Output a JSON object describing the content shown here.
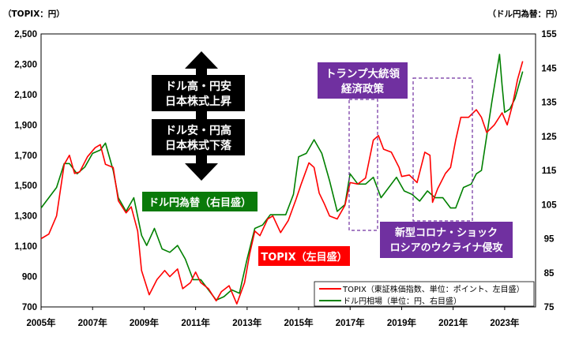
{
  "chart_data": {
    "type": "line",
    "left_axis_unit": "（TOPIX：円）",
    "right_axis_unit": "（ドル円為替：円）",
    "x_tick_labels": [
      "2005年",
      "2007年",
      "2009年",
      "2011年",
      "2013年",
      "2015年",
      "2017年",
      "2019年",
      "2021年",
      "2023年"
    ],
    "x_ticks": [
      2005,
      2007,
      2009,
      2011,
      2013,
      2015,
      2017,
      2019,
      2021,
      2023
    ],
    "xlim": [
      2005,
      2024.2
    ],
    "left_ylim": [
      700,
      2500
    ],
    "left_ticks": [
      700,
      900,
      1100,
      1300,
      1500,
      1700,
      1900,
      2100,
      2300,
      2500
    ],
    "left_tick_labels": [
      "700",
      "900",
      "1,100",
      "1,300",
      "1,500",
      "1,700",
      "1,900",
      "2,100",
      "2,300",
      "2,500"
    ],
    "right_ylim": [
      75,
      155
    ],
    "right_ticks": [
      75,
      85,
      95,
      105,
      115,
      125,
      135,
      145,
      155
    ],
    "right_tick_labels": [
      "75",
      "85",
      "95",
      "105",
      "115",
      "125",
      "135",
      "145",
      "155"
    ],
    "grid": false,
    "legend_position": "bottom-right",
    "colors": {
      "topix": "#ff0000",
      "usdjpy": "#008000",
      "callout_black": "#000000",
      "callout_green": "#0a7a0a",
      "callout_red": "#ff0000",
      "callout_purple": "#7030a0",
      "dash_purple": "#7030a0"
    },
    "series": [
      {
        "name": "TOPIX（東証株価指数、単位：ポイント、左目盛）",
        "axis": "left",
        "x": [
          2005.0,
          2005.3,
          2005.6,
          2005.9,
          2006.1,
          2006.3,
          2006.5,
          2006.8,
          2007.1,
          2007.3,
          2007.5,
          2007.8,
          2008.0,
          2008.3,
          2008.5,
          2008.75,
          2008.9,
          2009.2,
          2009.5,
          2009.8,
          2010.0,
          2010.3,
          2010.5,
          2010.8,
          2011.0,
          2011.2,
          2011.5,
          2011.8,
          2012.0,
          2012.3,
          2012.6,
          2012.9,
          2013.1,
          2013.3,
          2013.5,
          2013.8,
          2014.0,
          2014.3,
          2014.6,
          2014.9,
          2015.1,
          2015.4,
          2015.6,
          2015.8,
          2016.0,
          2016.2,
          2016.5,
          2016.8,
          2017.0,
          2017.3,
          2017.6,
          2017.9,
          2018.1,
          2018.3,
          2018.6,
          2018.9,
          2019.0,
          2019.3,
          2019.6,
          2019.9,
          2020.1,
          2020.2,
          2020.4,
          2020.7,
          2020.9,
          2021.1,
          2021.3,
          2021.6,
          2021.9,
          2022.1,
          2022.3,
          2022.6,
          2022.9,
          2023.1,
          2023.3,
          2023.5,
          2023.7
        ],
        "values": [
          1150,
          1180,
          1300,
          1640,
          1700,
          1580,
          1590,
          1690,
          1750,
          1770,
          1640,
          1620,
          1400,
          1320,
          1360,
          1200,
          940,
          780,
          880,
          940,
          900,
          950,
          820,
          860,
          930,
          860,
          820,
          740,
          800,
          840,
          720,
          860,
          1050,
          1200,
          1170,
          1280,
          1300,
          1190,
          1270,
          1410,
          1510,
          1650,
          1620,
          1450,
          1380,
          1300,
          1280,
          1370,
          1520,
          1510,
          1550,
          1800,
          1830,
          1740,
          1720,
          1620,
          1560,
          1570,
          1520,
          1720,
          1700,
          1390,
          1480,
          1580,
          1620,
          1800,
          1950,
          1950,
          2000,
          1950,
          1850,
          1900,
          1980,
          1900,
          2030,
          2200,
          2320
        ]
      },
      {
        "name": "ドル円相場（単位：円、右目盛）",
        "axis": "right",
        "x": [
          2005.0,
          2005.3,
          2005.6,
          2005.9,
          2006.1,
          2006.4,
          2006.7,
          2007.0,
          2007.3,
          2007.5,
          2007.8,
          2008.0,
          2008.3,
          2008.6,
          2008.9,
          2009.1,
          2009.4,
          2009.7,
          2010.0,
          2010.3,
          2010.6,
          2010.9,
          2011.2,
          2011.5,
          2011.8,
          2012.1,
          2012.4,
          2012.7,
          2013.0,
          2013.3,
          2013.6,
          2013.9,
          2014.2,
          2014.5,
          2014.8,
          2015.0,
          2015.3,
          2015.6,
          2015.9,
          2016.2,
          2016.5,
          2016.8,
          2017.0,
          2017.3,
          2017.6,
          2017.9,
          2018.2,
          2018.5,
          2018.8,
          2019.1,
          2019.4,
          2019.7,
          2020.0,
          2020.3,
          2020.6,
          2020.9,
          2021.1,
          2021.4,
          2021.7,
          2021.9,
          2022.1,
          2022.3,
          2022.5,
          2022.8,
          2022.9,
          2023.0,
          2023.2,
          2023.4,
          2023.7
        ],
        "values": [
          104,
          107,
          110,
          117,
          117,
          114,
          116,
          120,
          121,
          123,
          115,
          107,
          103,
          107,
          96,
          93,
          98,
          92,
          91,
          93,
          89,
          83,
          83,
          80,
          77,
          78,
          80,
          79,
          89,
          98,
          99,
          102,
          102,
          102,
          108,
          119,
          120,
          124,
          120,
          112,
          103,
          105,
          114,
          111,
          111,
          113,
          107,
          110,
          113,
          109,
          108,
          106,
          109,
          107,
          107,
          104,
          104,
          110,
          111,
          114,
          115,
          125,
          135,
          149,
          140,
          132,
          133,
          136,
          144
        ]
      }
    ]
  },
  "annotations": {
    "strong_dollar_line1": "ドル高・円安",
    "strong_dollar_line2": "日本株式上昇",
    "weak_dollar_line1": "ドル安・円高",
    "weak_dollar_line2": "日本株式下落",
    "usdjpy_label": "ドル円為替（右目盛）",
    "topix_label": "TOPIX（左目盛）",
    "trump_line1": "トランプ大統領",
    "trump_line2": "経済政策",
    "covid_line1": "新型コロナ・ショック",
    "covid_line2": "ロシアのウクライナ侵攻"
  }
}
